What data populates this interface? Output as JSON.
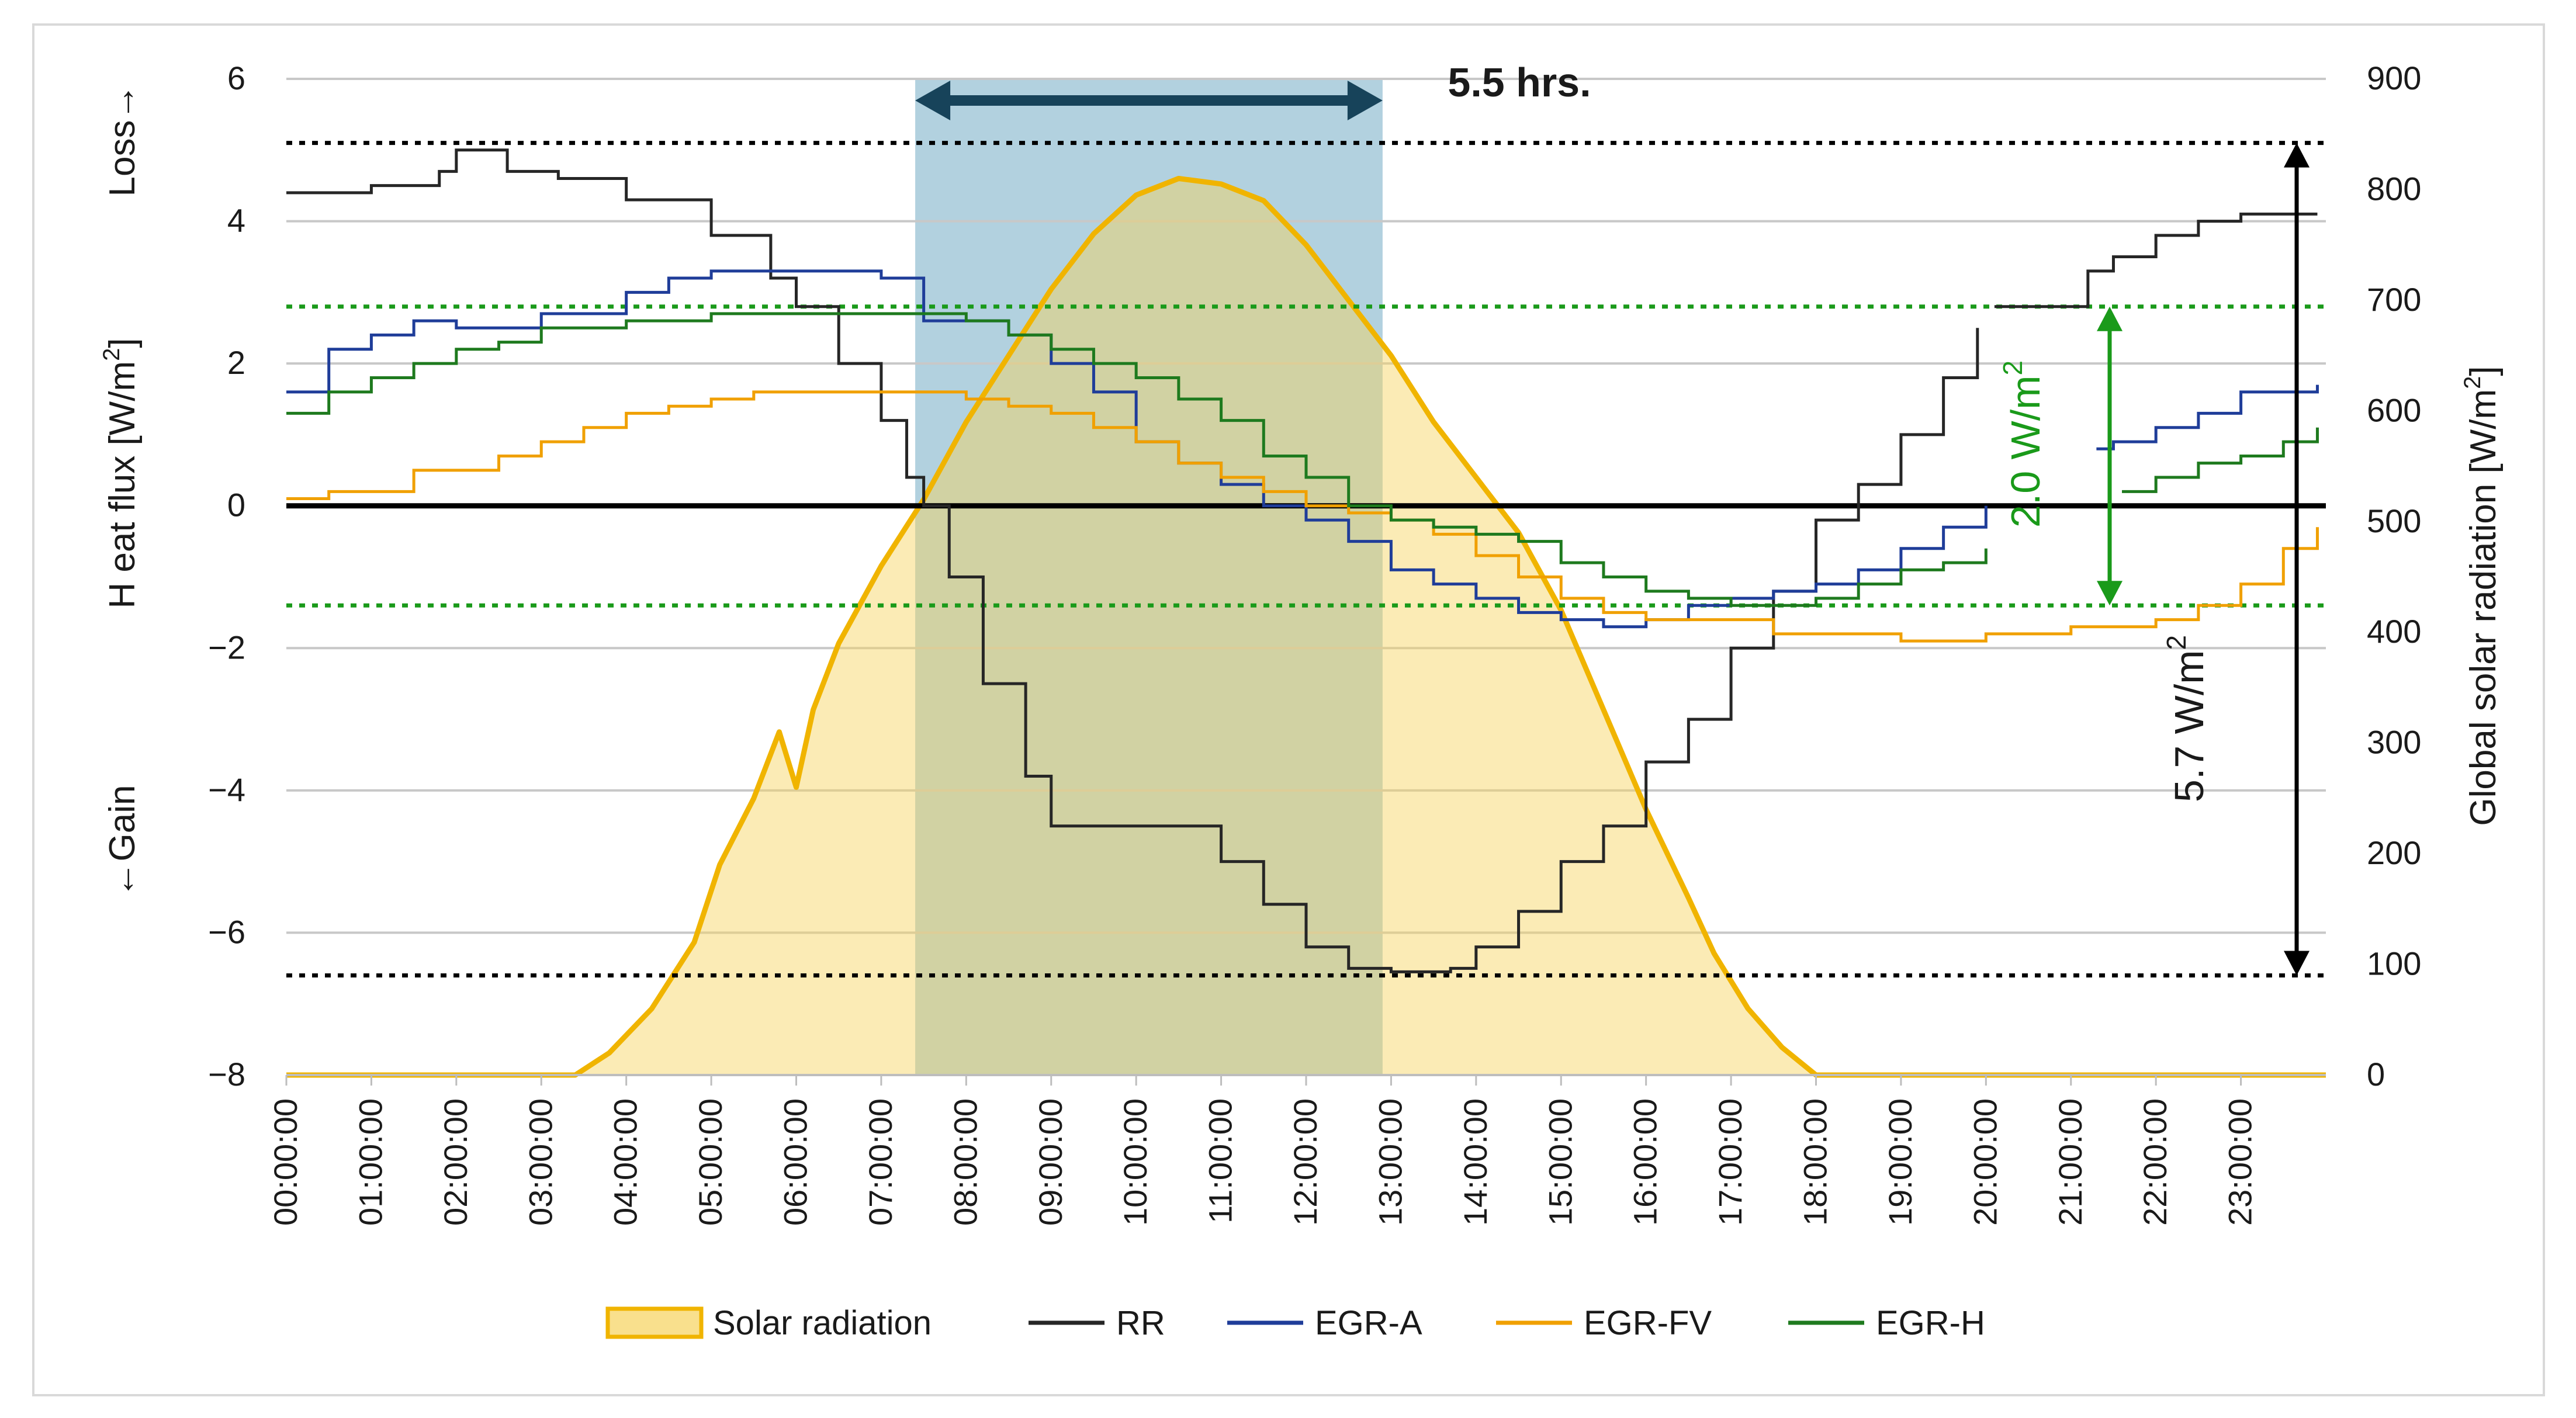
{
  "chart_data": {
    "type": "line",
    "title": "",
    "xlabel": "",
    "ylabel_left": {
      "gain": "←Gain",
      "main": "H eat flux [W/m",
      "sup": "2",
      "close": "]",
      "loss": "Loss→"
    },
    "ylabel_right": {
      "main": "Global solar radiation [W/m",
      "sup": "2",
      "close": "]"
    },
    "ylim_left": [
      -8,
      6
    ],
    "ylim_right": [
      0,
      900
    ],
    "xlim": [
      0,
      24
    ],
    "left_ticks": [
      {
        "v": 6,
        "label": "6"
      },
      {
        "v": 4,
        "label": "4"
      },
      {
        "v": 2,
        "label": "2"
      },
      {
        "v": 0,
        "label": "0"
      },
      {
        "v": -2,
        "label": "−2"
      },
      {
        "v": -4,
        "label": "−4"
      },
      {
        "v": -6,
        "label": "−6"
      },
      {
        "v": -8,
        "label": "−8"
      }
    ],
    "right_ticks": [
      {
        "v": 900,
        "label": "900"
      },
      {
        "v": 800,
        "label": "800"
      },
      {
        "v": 700,
        "label": "700"
      },
      {
        "v": 600,
        "label": "600"
      },
      {
        "v": 500,
        "label": "500"
      },
      {
        "v": 400,
        "label": "400"
      },
      {
        "v": 300,
        "label": "300"
      },
      {
        "v": 200,
        "label": "200"
      },
      {
        "v": 100,
        "label": "100"
      },
      {
        "v": 0,
        "label": "0"
      }
    ],
    "x_ticks": [
      "00:00:00",
      "01:00:00",
      "02:00:00",
      "03:00:00",
      "04:00:00",
      "05:00:00",
      "06:00:00",
      "07:00:00",
      "08:00:00",
      "09:00:00",
      "10:00:00",
      "11:00:00",
      "12:00:00",
      "13:00:00",
      "14:00:00",
      "15:00:00",
      "16:00:00",
      "17:00:00",
      "18:00:00",
      "19:00:00",
      "20:00:00",
      "21:00:00",
      "22:00:00",
      "23:00:00"
    ],
    "legend": [
      {
        "name": "Solar radiation",
        "color": "#f0b400",
        "kind": "area"
      },
      {
        "name": "RR",
        "color": "#262626",
        "kind": "line"
      },
      {
        "name": "EGR-A",
        "color": "#1f3d99",
        "kind": "line"
      },
      {
        "name": "EGR-FV",
        "color": "#f0a000",
        "kind": "line"
      },
      {
        "name": "EGR-H",
        "color": "#1e7a1e",
        "kind": "line"
      }
    ],
    "series": [
      {
        "name": "Solar radiation",
        "axis": "right",
        "color": "#f0b400",
        "x": [
          0,
          3.4,
          3.8,
          4.3,
          4.8,
          5.1,
          5.5,
          5.8,
          6.0,
          6.2,
          6.5,
          7.0,
          7.5,
          8.0,
          8.5,
          9.0,
          9.5,
          10.0,
          10.5,
          11.0,
          11.5,
          12.0,
          12.5,
          13.0,
          13.5,
          14.0,
          14.5,
          15.0,
          15.5,
          16.0,
          16.5,
          16.8,
          17.2,
          17.6,
          18.0,
          24
        ],
        "y": [
          0,
          0,
          20,
          60,
          120,
          190,
          250,
          310,
          260,
          330,
          390,
          460,
          520,
          590,
          650,
          710,
          760,
          795,
          810,
          805,
          790,
          750,
          700,
          650,
          590,
          540,
          490,
          420,
          330,
          240,
          160,
          110,
          60,
          25,
          0,
          0
        ]
      },
      {
        "name": "RR",
        "axis": "left",
        "color": "#262626",
        "breaks": [
          20.1
        ],
        "x": [
          0,
          1.0,
          1.8,
          2.0,
          2.6,
          3.2,
          4.0,
          5.0,
          5.7,
          6.0,
          6.5,
          7.0,
          7.3,
          7.5,
          7.8,
          8.2,
          8.7,
          9.0,
          10.5,
          11.0,
          11.5,
          12.0,
          12.5,
          13.0,
          13.7,
          14.0,
          14.5,
          15.0,
          15.5,
          16.0,
          16.5,
          17.0,
          17.5,
          18.0,
          18.5,
          19.0,
          19.5,
          19.9,
          20.1,
          21.2,
          21.5,
          22.0,
          22.5,
          23.0,
          23.9
        ],
        "y": [
          4.4,
          4.5,
          4.7,
          5.0,
          4.7,
          4.6,
          4.3,
          3.8,
          3.2,
          2.8,
          2.0,
          1.2,
          0.4,
          0,
          -1.0,
          -2.5,
          -3.8,
          -4.5,
          -4.5,
          -5.0,
          -5.6,
          -6.2,
          -6.5,
          -6.55,
          -6.5,
          -6.2,
          -5.7,
          -5.0,
          -4.5,
          -3.6,
          -3.0,
          -2.0,
          -1.2,
          -0.2,
          0.3,
          1.0,
          1.8,
          2.5,
          2.8,
          3.3,
          3.5,
          3.8,
          4.0,
          4.1,
          4.1
        ]
      },
      {
        "name": "EGR-A",
        "axis": "left",
        "color": "#1f3d99",
        "breaks": [
          21.3
        ],
        "x": [
          0,
          0.5,
          1.0,
          1.5,
          2.0,
          3.0,
          4.0,
          4.5,
          5.0,
          6.0,
          7.0,
          7.5,
          8.0,
          8.5,
          9.0,
          9.5,
          10.0,
          10.5,
          11.0,
          11.5,
          12.0,
          12.5,
          13.0,
          13.5,
          14.0,
          14.5,
          15.0,
          15.5,
          16.0,
          16.5,
          17.0,
          17.5,
          18.0,
          18.5,
          19.0,
          19.5,
          20.0,
          21.3,
          21.5,
          22.0,
          22.5,
          23.0,
          23.9
        ],
        "y": [
          1.6,
          2.2,
          2.4,
          2.6,
          2.5,
          2.7,
          3.0,
          3.2,
          3.3,
          3.3,
          3.2,
          2.6,
          2.6,
          2.4,
          2.0,
          1.6,
          0.9,
          0.6,
          0.3,
          0,
          -0.2,
          -0.5,
          -0.9,
          -1.1,
          -1.3,
          -1.5,
          -1.6,
          -1.7,
          -1.6,
          -1.4,
          -1.3,
          -1.2,
          -1.1,
          -0.9,
          -0.6,
          -0.3,
          0,
          0.8,
          0.9,
          1.1,
          1.3,
          1.6,
          1.7
        ]
      },
      {
        "name": "EGR-FV",
        "axis": "left",
        "color": "#f0a000",
        "x": [
          0,
          0.5,
          1.5,
          2.5,
          3.0,
          3.5,
          4.0,
          4.5,
          5.0,
          5.5,
          6.0,
          6.5,
          7.0,
          7.5,
          8.0,
          8.5,
          9.0,
          9.5,
          10.0,
          10.5,
          11.0,
          11.5,
          12.0,
          12.5,
          13.0,
          13.5,
          14.0,
          14.5,
          15.0,
          15.5,
          16.0,
          16.5,
          17.0,
          17.5,
          18.0,
          19.0,
          20.0,
          21.0,
          22.0,
          22.5,
          23.0,
          23.5,
          23.9
        ],
        "y": [
          0.1,
          0.2,
          0.5,
          0.7,
          0.9,
          1.1,
          1.3,
          1.4,
          1.5,
          1.6,
          1.6,
          1.6,
          1.6,
          1.6,
          1.5,
          1.4,
          1.3,
          1.1,
          0.9,
          0.6,
          0.4,
          0.2,
          0,
          -0.1,
          -0.2,
          -0.4,
          -0.7,
          -1.0,
          -1.3,
          -1.5,
          -1.6,
          -1.6,
          -1.6,
          -1.8,
          -1.8,
          -1.9,
          -1.8,
          -1.7,
          -1.6,
          -1.4,
          -1.1,
          -0.6,
          -0.3
        ]
      },
      {
        "name": "EGR-H",
        "axis": "left",
        "color": "#1e7a1e",
        "breaks": [
          21.6
        ],
        "x": [
          0,
          0.5,
          1.0,
          1.5,
          2.0,
          2.5,
          3.0,
          4.0,
          5.0,
          6.0,
          7.0,
          7.5,
          8.0,
          8.5,
          9.0,
          9.5,
          10.0,
          10.5,
          11.0,
          11.5,
          12.0,
          12.5,
          13.0,
          13.5,
          14.0,
          14.5,
          15.0,
          15.5,
          16.0,
          16.5,
          17.0,
          17.5,
          18.0,
          18.5,
          19.0,
          19.5,
          20.0,
          21.6,
          22.0,
          22.5,
          23.0,
          23.5,
          23.9
        ],
        "y": [
          1.3,
          1.6,
          1.8,
          2.0,
          2.2,
          2.3,
          2.5,
          2.6,
          2.7,
          2.7,
          2.7,
          2.7,
          2.6,
          2.4,
          2.2,
          2.0,
          1.8,
          1.5,
          1.2,
          0.7,
          0.4,
          0,
          -0.2,
          -0.3,
          -0.4,
          -0.5,
          -0.8,
          -1.0,
          -1.2,
          -1.3,
          -1.4,
          -1.4,
          -1.3,
          -1.1,
          -0.9,
          -0.8,
          -0.6,
          0.2,
          0.4,
          0.6,
          0.7,
          0.9,
          1.1
        ]
      }
    ],
    "reference_lines": [
      {
        "axis": "left",
        "value": 0,
        "color": "#000000",
        "style": "solid"
      },
      {
        "axis": "left",
        "value": 5.1,
        "color": "#000000",
        "style": "dotted"
      },
      {
        "axis": "left",
        "value": -6.6,
        "color": "#000000",
        "style": "dotted"
      },
      {
        "axis": "left",
        "value": 2.8,
        "color": "#1a9a1a",
        "style": "dotted"
      },
      {
        "axis": "left",
        "value": -1.4,
        "color": "#1a9a1a",
        "style": "dotted"
      }
    ],
    "shaded_band": {
      "x_start": 7.4,
      "x_end": 12.9,
      "color": "#7fb2c9"
    },
    "annotations": {
      "duration": {
        "label": "5.5 hrs.",
        "x_start": 7.4,
        "x_end": 12.9
      },
      "range_large": {
        "label": "5.7 W/m",
        "sup": "2",
        "from": -6.6,
        "to": 5.1
      },
      "range_small": {
        "label": "2.0 W/m",
        "sup": "2",
        "from": -1.4,
        "to": 2.8
      }
    }
  }
}
